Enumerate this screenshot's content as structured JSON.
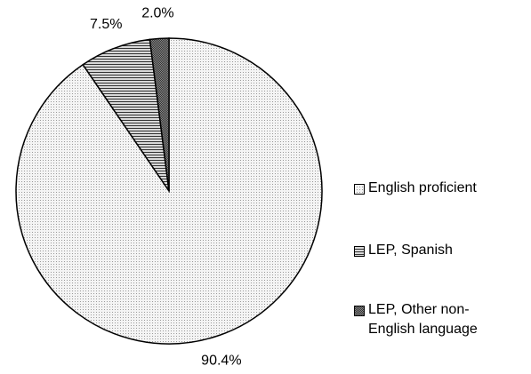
{
  "chart_data": {
    "type": "pie",
    "categories": [
      "English proficient",
      "LEP, Spanish",
      "LEP, Other non-English language"
    ],
    "values": [
      90.4,
      7.5,
      2.0
    ],
    "value_labels": [
      "90.4%",
      "7.5%",
      "2.0%"
    ]
  }
}
